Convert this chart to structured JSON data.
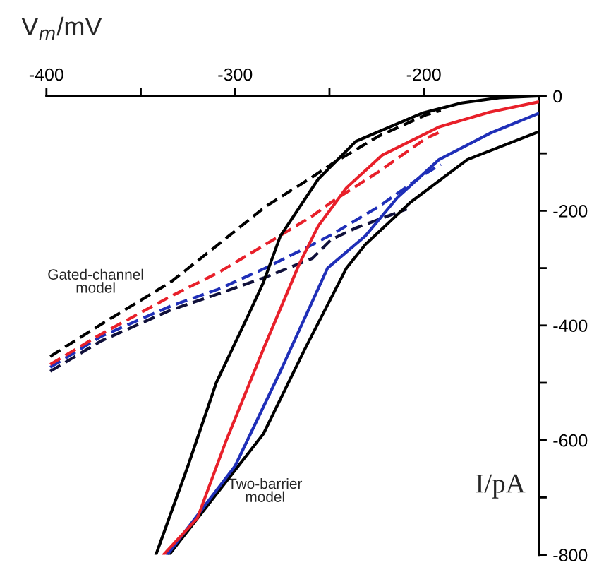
{
  "chart_data": {
    "type": "line",
    "xlabel": "V$_{m}$/mV",
    "ylabel": "I/pA",
    "xlim": [
      -400,
      -139
    ],
    "ylim": [
      -800,
      0
    ],
    "xticks": [
      -400,
      {
        "value": -350,
        "label": null
      },
      -300,
      {
        "value": -250,
        "label": null
      },
      -200
    ],
    "yticks": [
      0,
      {
        "value": -100,
        "label": null
      },
      -200,
      {
        "value": -300,
        "label": null
      },
      -400,
      {
        "value": -500,
        "label": null
      },
      -600,
      {
        "value": -700,
        "label": null
      },
      -800
    ],
    "grid": false,
    "legend": false,
    "series": [
      {
        "color": "#000000",
        "line_style": "solid",
        "x": [
          -342,
          -325,
          -310,
          -293,
          -285,
          -276,
          -256,
          -236,
          -201,
          -180,
          -160,
          -139
        ],
        "values": [
          -800,
          -645,
          -500,
          -382,
          -325,
          -244,
          -145,
          -79,
          -30,
          -12,
          -3,
          0
        ]
      },
      {
        "color": "#e8202a",
        "line_style": "solid",
        "x": [
          -338,
          -320,
          -305,
          -285,
          -266,
          -256,
          -241,
          -222,
          -192,
          -165,
          -139
        ],
        "values": [
          -800,
          -736,
          -603,
          -441,
          -293,
          -227,
          -160,
          -103,
          -54,
          -28,
          -10
        ]
      },
      {
        "color": "#1f2fb8",
        "line_style": "solid",
        "x": [
          -336,
          -300,
          -276,
          -251,
          -231,
          -214,
          -192,
          -165,
          -139
        ],
        "values": [
          -800,
          -645,
          -480,
          -300,
          -244,
          -177,
          -111,
          -65,
          -30
        ]
      },
      {
        "color": "#000000",
        "line_style": "solid",
        "x": [
          -335,
          -285,
          -263,
          -241,
          -231,
          -207,
          -177,
          -139
        ],
        "values": [
          -800,
          -589,
          -441,
          -300,
          -259,
          -185,
          -111,
          -62
        ]
      },
      {
        "color": "#000000",
        "line_style": "dashed",
        "x": [
          -398,
          -371,
          -334,
          -309,
          -284,
          -259,
          -249,
          -224,
          -199,
          -191
        ],
        "values": [
          -454,
          -398,
          -324,
          -259,
          -193,
          -141,
          -119,
          -70,
          -33,
          -25
        ]
      },
      {
        "color": "#e8202a",
        "line_style": "dashed",
        "x": [
          -398,
          -371,
          -334,
          -309,
          -284,
          -259,
          -249,
          -224,
          -199,
          -191
        ],
        "values": [
          -468,
          -415,
          -349,
          -308,
          -259,
          -209,
          -185,
          -132,
          -74,
          -62
        ]
      },
      {
        "color": "#1f2fb8",
        "line_style": "dashed",
        "x": [
          -398,
          -371,
          -334,
          -309,
          -284,
          -259,
          -249,
          -224,
          -199,
          -191
        ],
        "values": [
          -473,
          -419,
          -366,
          -337,
          -300,
          -259,
          -242,
          -193,
          -135,
          -119
        ]
      },
      {
        "color": "#10103a",
        "line_style": "dashed",
        "x": [
          -398,
          -371,
          -334,
          -309,
          -284,
          -259,
          -249,
          -236,
          -209
        ],
        "values": [
          -480,
          -427,
          -373,
          -345,
          -316,
          -283,
          -250,
          -230,
          -197
        ]
      }
    ],
    "annotations": [
      "Gated-channel\nmodel",
      "Two-barrier\nmodel"
    ]
  }
}
